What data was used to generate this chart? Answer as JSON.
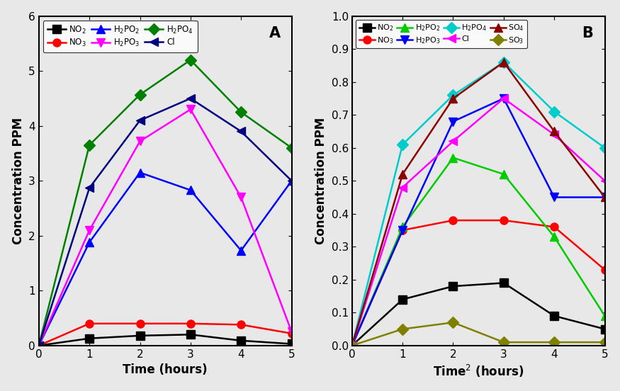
{
  "time": [
    0,
    1,
    2,
    3,
    4,
    5
  ],
  "panel_A": {
    "NO2": [
      0,
      0.13,
      0.18,
      0.2,
      0.09,
      0.03
    ],
    "NO3": [
      0,
      0.4,
      0.4,
      0.4,
      0.38,
      0.22
    ],
    "H2PO2": [
      0,
      1.88,
      3.15,
      2.83,
      1.73,
      3.0
    ],
    "H2PO3": [
      0,
      2.1,
      3.72,
      4.3,
      2.7,
      0.25
    ],
    "H2PO4": [
      0,
      3.65,
      4.57,
      5.2,
      4.25,
      3.6
    ],
    "Cl": [
      0,
      2.87,
      4.1,
      4.5,
      3.9,
      3.0
    ]
  },
  "panel_B": {
    "NO2": [
      0,
      0.14,
      0.18,
      0.19,
      0.09,
      0.05
    ],
    "NO3": [
      0,
      0.35,
      0.38,
      0.38,
      0.36,
      0.23
    ],
    "H2PO2": [
      0,
      0.36,
      0.57,
      0.52,
      0.33,
      0.09
    ],
    "H2PO3": [
      0,
      0.35,
      0.68,
      0.75,
      0.45,
      0.45
    ],
    "H2PO4": [
      0,
      0.61,
      0.76,
      0.86,
      0.71,
      0.6
    ],
    "Cl": [
      0,
      0.48,
      0.62,
      0.75,
      0.64,
      0.5
    ],
    "SO4": [
      0,
      0.52,
      0.75,
      0.86,
      0.65,
      0.45
    ],
    "SO3": [
      0,
      0.05,
      0.07,
      0.01,
      0.01,
      0.01
    ]
  },
  "colors_A": {
    "NO2": "#000000",
    "NO3": "#ff0000",
    "H2PO2": "#0000ff",
    "H2PO3": "#ff00ff",
    "H2PO4": "#008000",
    "Cl": "#000080"
  },
  "colors_B": {
    "NO2": "#000000",
    "NO3": "#ff0000",
    "H2PO2": "#00cc00",
    "H2PO3": "#0000ff",
    "H2PO4": "#00cccc",
    "Cl": "#ff00ff",
    "SO4": "#8b0000",
    "SO3": "#808000"
  },
  "markers_A": {
    "NO2": "s",
    "NO3": "o",
    "H2PO2": "^",
    "H2PO3": "v",
    "H2PO4": "D",
    "Cl": "<"
  },
  "markers_B": {
    "NO2": "s",
    "NO3": "o",
    "H2PO2": "^",
    "H2PO3": "v",
    "H2PO4": "D",
    "Cl": "<",
    "SO4": "^",
    "SO3": "D"
  },
  "labels_A": {
    "NO2": "NO$_2$",
    "NO3": "NO$_3$",
    "H2PO2": "H$_2$PO$_2$",
    "H2PO3": "H$_2$PO$_3$",
    "H2PO4": "H$_2$PO$_4$",
    "Cl": "Cl"
  },
  "labels_B": {
    "NO2": "NO$_2$",
    "NO3": "NO$_3$",
    "H2PO2": "H$_2$PO$_2$",
    "H2PO3": "H$_2$PO$_3$",
    "H2PO4": "H$_2$PO$_4$",
    "Cl": "Cl",
    "SO4": "SO$_4$",
    "SO3": "SO$_3$"
  },
  "bg_color": "#e8e8e8",
  "ylabel": "Concentration PPM"
}
